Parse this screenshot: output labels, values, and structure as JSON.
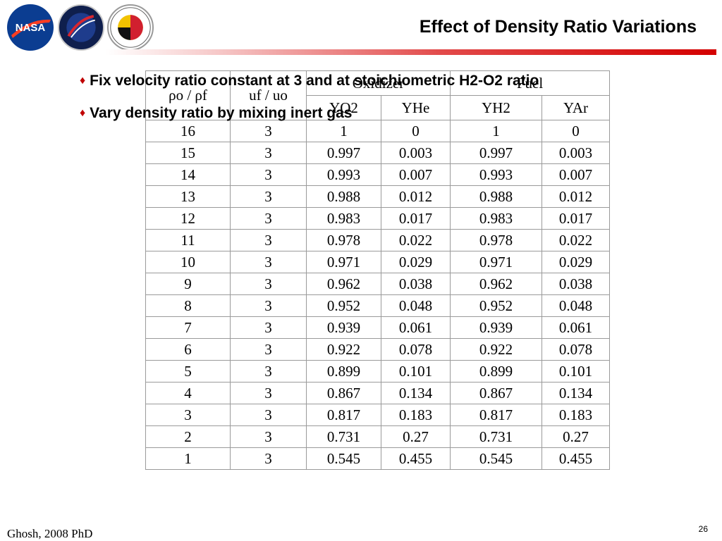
{
  "logos": [
    "NASA",
    "Exploration",
    "University of Maryland"
  ],
  "title": "Effect of Density Ratio Variations",
  "bullets": [
    "Fix velocity ratio constant at 3 and at stoichiometric H2-O2 ratio",
    "Vary density ratio by mixing inert gas"
  ],
  "table": {
    "header_row1": [
      "ρo / ρf",
      "uf / uo",
      "Oxidizer",
      "Fuel"
    ],
    "header_row2": [
      "YO2",
      "YHe",
      "YH2",
      "YAr"
    ],
    "rows": [
      [
        "16",
        "3",
        "1",
        "0",
        "1",
        "0"
      ],
      [
        "15",
        "3",
        "0.997",
        "0.003",
        "0.997",
        "0.003"
      ],
      [
        "14",
        "3",
        "0.993",
        "0.007",
        "0.993",
        "0.007"
      ],
      [
        "13",
        "3",
        "0.988",
        "0.012",
        "0.988",
        "0.012"
      ],
      [
        "12",
        "3",
        "0.983",
        "0.017",
        "0.983",
        "0.017"
      ],
      [
        "11",
        "3",
        "0.978",
        "0.022",
        "0.978",
        "0.022"
      ],
      [
        "10",
        "3",
        "0.971",
        "0.029",
        "0.971",
        "0.029"
      ],
      [
        "9",
        "3",
        "0.962",
        "0.038",
        "0.962",
        "0.038"
      ],
      [
        "8",
        "3",
        "0.952",
        "0.048",
        "0.952",
        "0.048"
      ],
      [
        "7",
        "3",
        "0.939",
        "0.061",
        "0.939",
        "0.061"
      ],
      [
        "6",
        "3",
        "0.922",
        "0.078",
        "0.922",
        "0.078"
      ],
      [
        "5",
        "3",
        "0.899",
        "0.101",
        "0.899",
        "0.101"
      ],
      [
        "4",
        "3",
        "0.867",
        "0.134",
        "0.867",
        "0.134"
      ],
      [
        "3",
        "3",
        "0.817",
        "0.183",
        "0.817",
        "0.183"
      ],
      [
        "2",
        "3",
        "0.731",
        "0.27",
        "0.731",
        "0.27"
      ],
      [
        "1",
        "3",
        "0.545",
        "0.455",
        "0.545",
        "0.455"
      ]
    ]
  },
  "footer": "Ghosh, 2008 PhD",
  "page_number": "26",
  "colors": {
    "accent": "#d40000",
    "bullet": "#c00000",
    "nasa_blue": "#0b3d91"
  }
}
